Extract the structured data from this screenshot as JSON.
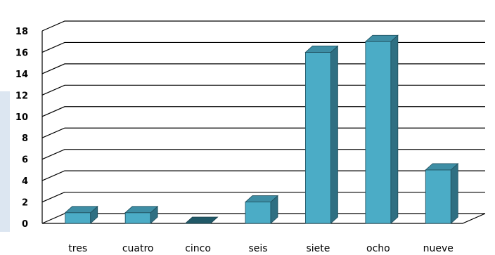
{
  "chart_data": {
    "type": "bar",
    "style": "3d-column",
    "categories": [
      "tres",
      "cuatro",
      "cinco",
      "seis",
      "siete",
      "ocho",
      "nueve"
    ],
    "values": [
      1,
      1,
      0,
      2,
      16,
      17,
      5
    ],
    "ylim": [
      0,
      18
    ],
    "y_ticks": [
      "0",
      "2",
      "4",
      "6",
      "8",
      "10",
      "12",
      "14",
      "16",
      "18"
    ],
    "grid": true,
    "legend": "none",
    "colors": {
      "bar_front": "#4bacc6",
      "bar_side": "#2f6f82",
      "bar_top": "#3e8ea5",
      "zero_bar": "#215968",
      "grid": "#000000",
      "side_strip": "#dce6f1"
    }
  }
}
